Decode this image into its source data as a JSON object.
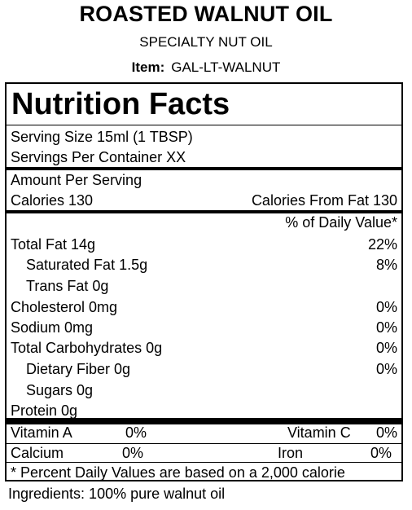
{
  "header": {
    "title": "ROASTED WALNUT OIL",
    "subtitle": "SPECIALTY NUT OIL",
    "item_label": "Item:",
    "item_value": "GAL-LT-WALNUT"
  },
  "label": {
    "heading": "Nutrition Facts",
    "serving_size": "Serving Size  15ml (1 TBSP)",
    "servings_per_container": "Servings Per Container  XX",
    "amount_per_serving": "Amount Per Serving",
    "calories": "Calories 130",
    "calories_from_fat": "Calories From Fat 130",
    "dv_header": "% of Daily Value*",
    "nutrients": [
      {
        "name": "Total Fat  14g",
        "dv": "22%"
      },
      {
        "name": "Saturated Fat   1.5g",
        "dv": "8%"
      },
      {
        "name": "Trans Fat  0g",
        "dv": ""
      },
      {
        "name": "Cholesterol   0mg",
        "dv": "0%"
      },
      {
        "name": "Sodium  0mg",
        "dv": "0%"
      },
      {
        "name": "Total Carbohydrates  0g",
        "dv": "0%"
      },
      {
        "name": "Dietary Fiber   0g",
        "dv": "0%"
      },
      {
        "name": "Sugars  0g",
        "dv": ""
      },
      {
        "name": "Protein  0g",
        "dv": ""
      }
    ],
    "vitamins": {
      "vitamin_a_name": "Vitamin A",
      "vitamin_a_value": "0%",
      "vitamin_c_name": "Vitamin C",
      "vitamin_c_value": "0%",
      "calcium_name": "Calcium",
      "calcium_value": "0%",
      "iron_name": "Iron",
      "iron_value": "0%"
    },
    "footnote": "* Percent Daily Values are based on a 2,000 calorie"
  },
  "ingredients": "Ingredients: 100% pure walnut oil"
}
